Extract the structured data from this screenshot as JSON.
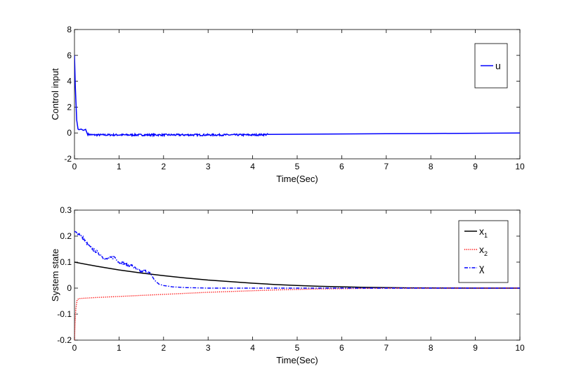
{
  "chart_data": [
    {
      "type": "line",
      "xlabel": "Time(Sec)",
      "ylabel": "Control input",
      "xlim": [
        0,
        10
      ],
      "ylim": [
        -2,
        8
      ],
      "xticks": [
        "0",
        "1",
        "2",
        "3",
        "4",
        "5",
        "6",
        "7",
        "8",
        "9",
        "10"
      ],
      "yticks": [
        "8",
        "6",
        "4",
        "2",
        "0",
        "-2"
      ],
      "xtick_values": [
        0,
        1,
        2,
        3,
        4,
        5,
        6,
        7,
        8,
        9,
        10
      ],
      "ytick_values": [
        8,
        6,
        4,
        2,
        0,
        -2
      ],
      "grid": false,
      "legend_position": "top-right",
      "series": [
        {
          "name": "u",
          "color": "#0000ff",
          "style": "solid",
          "noise_interval": [
            0.3,
            4.35
          ],
          "noise_amplitude": 0.07,
          "x": [
            0,
            0.02,
            0.05,
            0.08,
            0.1,
            0.15,
            0.2,
            0.25,
            0.3,
            0.4,
            1,
            2,
            3,
            4,
            4.35,
            5,
            6,
            7,
            8,
            9,
            10
          ],
          "y": [
            6.0,
            3.5,
            1.0,
            0.3,
            0.25,
            0.3,
            0.2,
            0.28,
            -0.1,
            -0.15,
            -0.15,
            -0.15,
            -0.15,
            -0.15,
            -0.12,
            -0.1,
            -0.08,
            -0.06,
            -0.04,
            -0.02,
            0
          ]
        }
      ]
    },
    {
      "type": "line",
      "xlabel": "Time(Sec)",
      "ylabel": "System state",
      "xlim": [
        0,
        10
      ],
      "ylim": [
        -0.2,
        0.3
      ],
      "xticks": [
        "0",
        "1",
        "2",
        "3",
        "4",
        "5",
        "6",
        "7",
        "8",
        "9",
        "10"
      ],
      "yticks": [
        "0.3",
        "0.2",
        "0.1",
        "0",
        "-0.1",
        "-0.2"
      ],
      "xtick_values": [
        0,
        1,
        2,
        3,
        4,
        5,
        6,
        7,
        8,
        9,
        10
      ],
      "ytick_values": [
        0.3,
        0.2,
        0.1,
        0,
        -0.1,
        -0.2
      ],
      "grid": false,
      "legend_position": "top-right",
      "series": [
        {
          "name": "x",
          "name_subscript": "1",
          "color": "#000000",
          "style": "solid",
          "x": [
            0,
            0.5,
            1,
            1.5,
            2,
            2.5,
            3,
            3.5,
            4,
            4.5,
            5,
            5.5,
            6,
            6.5,
            7,
            7.5,
            8,
            8.5,
            9,
            9.5,
            10
          ],
          "y": [
            0.1,
            0.084,
            0.07,
            0.058,
            0.048,
            0.039,
            0.031,
            0.025,
            0.019,
            0.014,
            0.01,
            0.007,
            0.005,
            0.003,
            0.002,
            0.001,
            0.0005,
            0.0002,
            0,
            0,
            0
          ]
        },
        {
          "name": "x",
          "name_subscript": "2",
          "color": "#ff0000",
          "style": "dotted",
          "x": [
            0,
            0.01,
            0.03,
            0.06,
            0.1,
            0.5,
            1,
            1.5,
            2,
            2.5,
            3,
            3.5,
            4,
            4.5,
            5,
            5.5,
            6,
            6.5,
            7,
            8,
            9,
            10
          ],
          "y": [
            -0.2,
            -0.15,
            -0.08,
            -0.045,
            -0.04,
            -0.036,
            -0.032,
            -0.028,
            -0.024,
            -0.02,
            -0.016,
            -0.013,
            -0.01,
            -0.007,
            -0.005,
            -0.003,
            -0.002,
            -0.001,
            0,
            0,
            0,
            0
          ]
        },
        {
          "name": "χ",
          "color": "#0000ff",
          "style": "dashdot",
          "noise_interval": [
            0,
            1.7
          ],
          "noise_amplitude": 0.006,
          "x": [
            0,
            0.1,
            0.2,
            0.3,
            0.4,
            0.5,
            0.6,
            0.7,
            0.8,
            0.9,
            1.0,
            1.1,
            1.2,
            1.3,
            1.4,
            1.5,
            1.6,
            1.7,
            1.8,
            1.9,
            2.0,
            2.2,
            2.5,
            3,
            3.5,
            4,
            5,
            6,
            7,
            8,
            9,
            10
          ],
          "y": [
            0.215,
            0.21,
            0.19,
            0.165,
            0.15,
            0.14,
            0.125,
            0.11,
            0.115,
            0.12,
            0.1,
            0.095,
            0.09,
            0.085,
            0.07,
            0.065,
            0.065,
            0.055,
            0.03,
            0.015,
            0.01,
            0.005,
            0.002,
            0,
            0,
            0,
            0,
            0,
            0,
            0,
            0,
            0
          ]
        }
      ]
    }
  ]
}
